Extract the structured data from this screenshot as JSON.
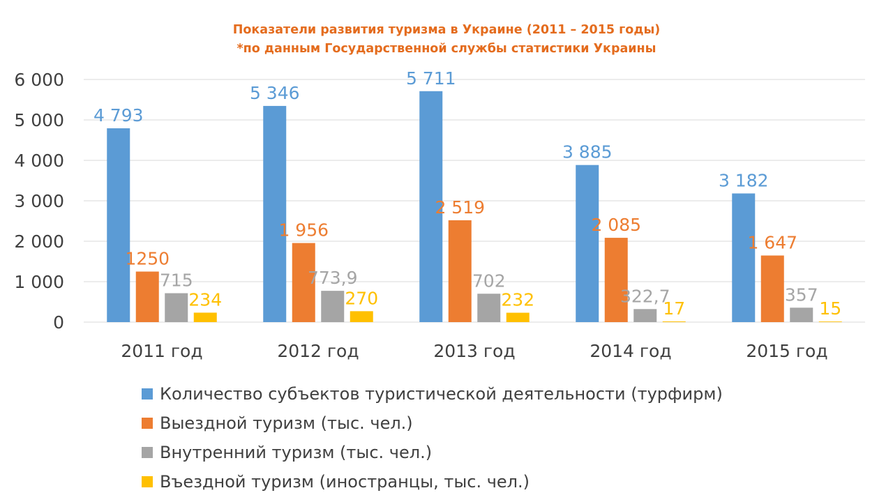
{
  "chart_data": {
    "type": "bar",
    "title": "Показатели развития туризма в Украине (2011 – 2015 годы)",
    "subtitle": "*по данным Государственной службы статистики Украины",
    "categories": [
      "2011 год",
      "2012 год",
      "2013 год",
      "2014 год",
      "2015 год"
    ],
    "series": [
      {
        "name": "Количество субъектов туристической деятельности (турфирм)",
        "color": "#5b9bd5",
        "values": [
          4793,
          5346,
          5711,
          3885,
          3182
        ],
        "labels": [
          "4 793",
          "5 346",
          "5 711",
          "3 885",
          "3 182"
        ]
      },
      {
        "name": "Выездной туризм (тыс. чел.)",
        "color": "#ed7d31",
        "values": [
          1250,
          1956,
          2519,
          2085,
          1647
        ],
        "labels": [
          "1250",
          "1 956",
          "2 519",
          "2 085",
          "1 647"
        ]
      },
      {
        "name": "Внутренний туризм (тыс. чел.)",
        "color": "#a5a5a5",
        "values": [
          715,
          773.9,
          702,
          322.7,
          357
        ],
        "labels": [
          "715",
          "773,9",
          "702",
          "322,7",
          "357"
        ]
      },
      {
        "name": "Въездной туризм (иностранцы, тыс. чел.)",
        "color": "#ffc000",
        "values": [
          234,
          270,
          232,
          17,
          15
        ],
        "labels": [
          "234",
          "270",
          "232",
          "17",
          "15"
        ]
      }
    ],
    "ylim": [
      0,
      6000
    ],
    "yticks": [
      0,
      1000,
      2000,
      3000,
      4000,
      5000,
      6000
    ],
    "ytick_labels": [
      "0",
      "1 000",
      "2 000",
      "3 000",
      "4 000",
      "5 000",
      "6 000"
    ],
    "grid": true,
    "legend_position": "bottom",
    "colors": {
      "title": "#e46c1e",
      "axis_text": "#404040",
      "grid": "#d9d9d9"
    }
  }
}
